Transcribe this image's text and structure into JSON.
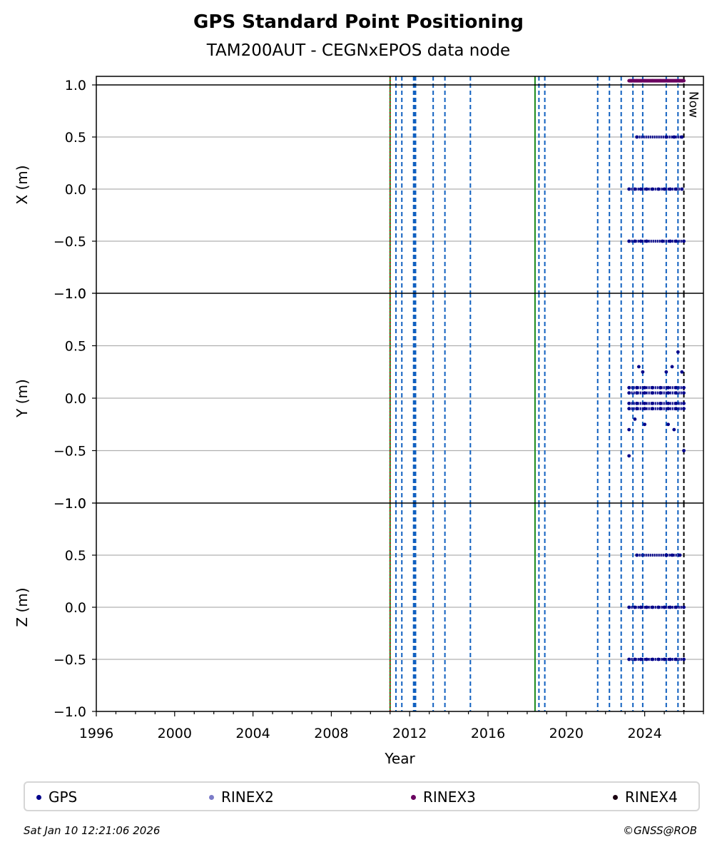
{
  "title": "GPS Standard Point Positioning",
  "subtitle": "TAM200AUT - CEGNxEPOS data node",
  "footer": {
    "timestamp": "Sat Jan 10 12:21:06 2026",
    "credit": "©GNSS@ROB"
  },
  "legend": [
    {
      "label": "GPS",
      "color": "#00008b"
    },
    {
      "label": "RINEX2",
      "color": "#7b7bc8"
    },
    {
      "label": "RINEX3",
      "color": "#6a0060"
    },
    {
      "label": "RINEX4",
      "color": "#1a0010"
    }
  ],
  "now_label": "Now",
  "chart_data": {
    "type": "scatter",
    "xlabel": "Year",
    "xlim": [
      1996,
      2027
    ],
    "xticks": [
      1996,
      2000,
      2004,
      2008,
      2012,
      2016,
      2020,
      2024
    ],
    "yticks": [
      -1.0,
      -0.5,
      0.0,
      0.5,
      1.0
    ],
    "ylim": [
      -1.0,
      1.0
    ],
    "grid": true,
    "legend_position": "bottom",
    "event_lines": {
      "blue_dashed": [
        2011.3,
        2011.6,
        2012.2,
        2012.25,
        2012.3,
        2013.2,
        2013.8,
        2015.1,
        2018.6,
        2018.9,
        2021.6,
        2022.2,
        2022.8,
        2023.4,
        2023.9,
        2025.1,
        2025.7
      ],
      "green": [
        2011.0,
        2018.4
      ],
      "red_dotted": [
        2011.0
      ],
      "now": 2026.0
    },
    "panels": [
      {
        "ylabel": "X (m)",
        "series": [
          {
            "name": "GPS",
            "color": "#00008b",
            "points": [
              [
                2023.2,
                0.0
              ],
              [
                2023.5,
                0.0
              ],
              [
                2023.8,
                0.0
              ],
              [
                2024.1,
                0.0
              ],
              [
                2024.4,
                0.0
              ],
              [
                2024.7,
                0.0
              ],
              [
                2025.0,
                0.0
              ],
              [
                2025.3,
                0.0
              ],
              [
                2025.6,
                0.0
              ],
              [
                2025.9,
                0.0
              ],
              [
                2023.2,
                -0.5
              ],
              [
                2023.5,
                -0.5
              ],
              [
                2023.8,
                -0.5
              ],
              [
                2024.1,
                -0.5
              ],
              [
                2024.9,
                -0.5
              ],
              [
                2025.3,
                -0.5
              ],
              [
                2025.6,
                -0.5
              ],
              [
                2026.0,
                -0.5
              ],
              [
                2023.6,
                0.5
              ],
              [
                2025.1,
                0.5
              ],
              [
                2025.5,
                0.5
              ],
              [
                2025.9,
                0.5
              ]
            ]
          },
          {
            "name": "RINEX3",
            "color": "#6a0060",
            "points": [
              [
                2023.2,
                1.04
              ],
              [
                2023.6,
                1.04
              ],
              [
                2024.0,
                1.04
              ],
              [
                2024.4,
                1.04
              ],
              [
                2024.8,
                1.04
              ],
              [
                2025.2,
                1.04
              ],
              [
                2025.6,
                1.04
              ],
              [
                2026.0,
                1.04
              ]
            ]
          }
        ]
      },
      {
        "ylabel": "Y (m)",
        "series": [
          {
            "name": "GPS",
            "color": "#00008b",
            "points": [
              [
                2023.2,
                0.1
              ],
              [
                2023.6,
                0.1
              ],
              [
                2024.0,
                0.1
              ],
              [
                2024.4,
                0.1
              ],
              [
                2024.8,
                0.1
              ],
              [
                2025.2,
                0.1
              ],
              [
                2025.6,
                0.1
              ],
              [
                2026.0,
                0.1
              ],
              [
                2023.2,
                0.05
              ],
              [
                2023.6,
                0.05
              ],
              [
                2024.0,
                0.05
              ],
              [
                2024.4,
                0.05
              ],
              [
                2024.8,
                0.05
              ],
              [
                2025.2,
                0.05
              ],
              [
                2025.6,
                0.05
              ],
              [
                2026.0,
                0.05
              ],
              [
                2023.2,
                -0.05
              ],
              [
                2023.6,
                -0.05
              ],
              [
                2024.0,
                -0.05
              ],
              [
                2024.4,
                -0.05
              ],
              [
                2024.8,
                -0.05
              ],
              [
                2025.2,
                -0.05
              ],
              [
                2025.6,
                -0.05
              ],
              [
                2026.0,
                -0.05
              ],
              [
                2023.2,
                -0.1
              ],
              [
                2023.6,
                -0.1
              ],
              [
                2024.0,
                -0.1
              ],
              [
                2024.4,
                -0.1
              ],
              [
                2024.8,
                -0.1
              ],
              [
                2025.2,
                -0.1
              ],
              [
                2025.6,
                -0.1
              ],
              [
                2026.0,
                -0.1
              ],
              [
                2023.7,
                0.3
              ],
              [
                2023.9,
                0.25
              ],
              [
                2025.1,
                0.25
              ],
              [
                2025.4,
                0.3
              ],
              [
                2025.9,
                0.25
              ],
              [
                2023.2,
                -0.3
              ],
              [
                2023.5,
                -0.2
              ],
              [
                2024.0,
                -0.25
              ],
              [
                2025.2,
                -0.25
              ],
              [
                2025.5,
                -0.3
              ],
              [
                2023.2,
                -0.55
              ],
              [
                2025.7,
                0.44
              ],
              [
                2026.0,
                -0.5
              ]
            ]
          }
        ]
      },
      {
        "ylabel": "Z (m)",
        "series": [
          {
            "name": "GPS",
            "color": "#00008b",
            "points": [
              [
                2023.2,
                0.0
              ],
              [
                2023.5,
                0.0
              ],
              [
                2023.8,
                0.0
              ],
              [
                2024.1,
                0.0
              ],
              [
                2024.4,
                0.0
              ],
              [
                2024.7,
                0.0
              ],
              [
                2025.0,
                0.0
              ],
              [
                2025.3,
                0.0
              ],
              [
                2025.6,
                0.0
              ],
              [
                2026.0,
                0.0
              ],
              [
                2023.2,
                -0.5
              ],
              [
                2023.5,
                -0.5
              ],
              [
                2023.8,
                -0.5
              ],
              [
                2024.1,
                -0.5
              ],
              [
                2024.4,
                -0.5
              ],
              [
                2024.7,
                -0.5
              ],
              [
                2025.0,
                -0.5
              ],
              [
                2025.3,
                -0.5
              ],
              [
                2025.6,
                -0.5
              ],
              [
                2026.0,
                -0.5
              ],
              [
                2023.6,
                0.5
              ],
              [
                2025.1,
                0.5
              ],
              [
                2025.4,
                0.5
              ],
              [
                2025.8,
                0.5
              ]
            ]
          }
        ]
      }
    ]
  }
}
